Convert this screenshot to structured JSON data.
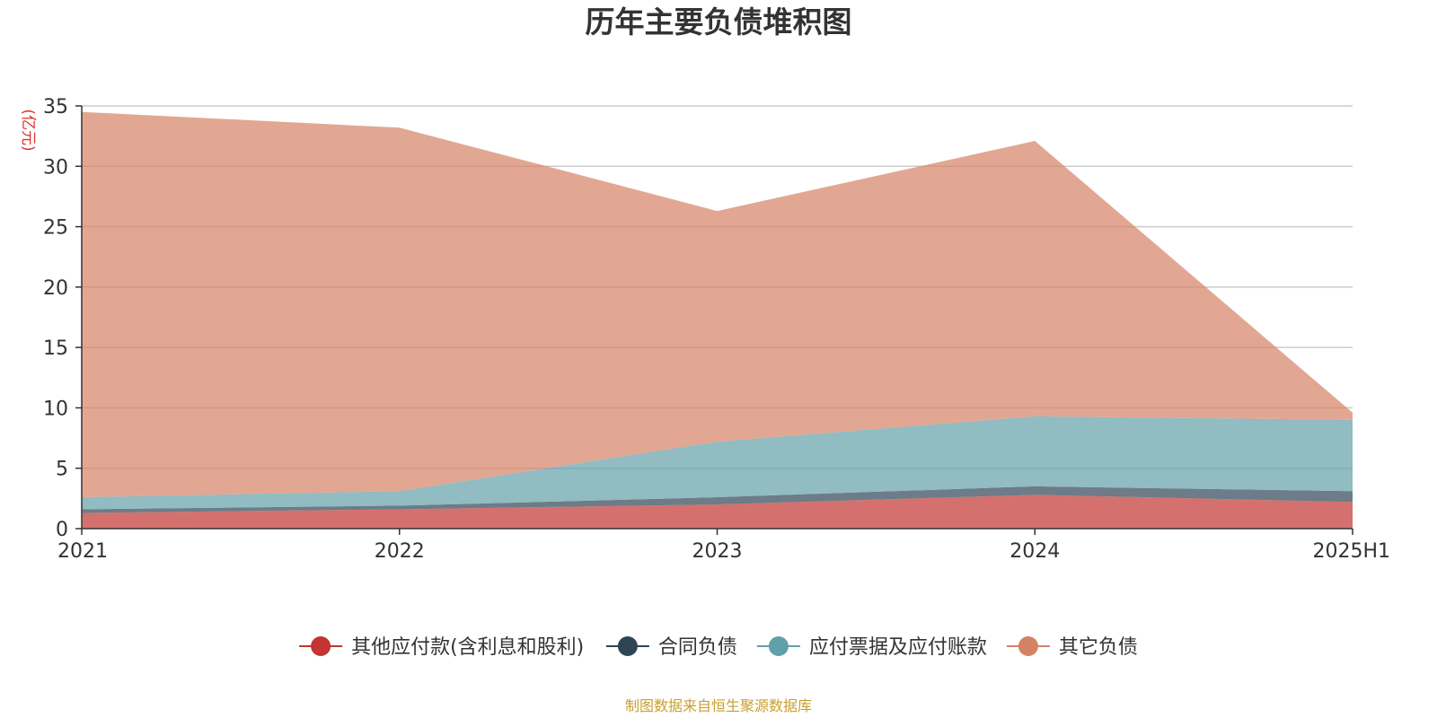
{
  "chart_data": {
    "type": "area",
    "stacked": true,
    "title": "历年主要负债堆积图",
    "ylabel": "(亿元)",
    "categories": [
      "2021",
      "2022",
      "2023",
      "2024",
      "2025H1"
    ],
    "yticks": [
      0,
      5,
      10,
      15,
      20,
      25,
      30,
      35
    ],
    "ylim": [
      0,
      35
    ],
    "series": [
      {
        "name": "其他应付款(含利息和股利)",
        "color": "#c23531",
        "values": [
          1.3,
          1.6,
          2.0,
          2.8,
          2.2
        ]
      },
      {
        "name": "合同负债",
        "color": "#2f4554",
        "values": [
          0.3,
          0.3,
          0.6,
          0.7,
          0.9
        ]
      },
      {
        "name": "应付票据及应付账款",
        "color": "#61a0a8",
        "values": [
          1.0,
          1.2,
          4.6,
          5.8,
          5.9
        ]
      },
      {
        "name": "其它负债",
        "color": "#d48265",
        "values": [
          31.9,
          30.1,
          19.1,
          22.8,
          0.6
        ]
      }
    ],
    "source": "制图数据来自恒生聚源数据库"
  }
}
